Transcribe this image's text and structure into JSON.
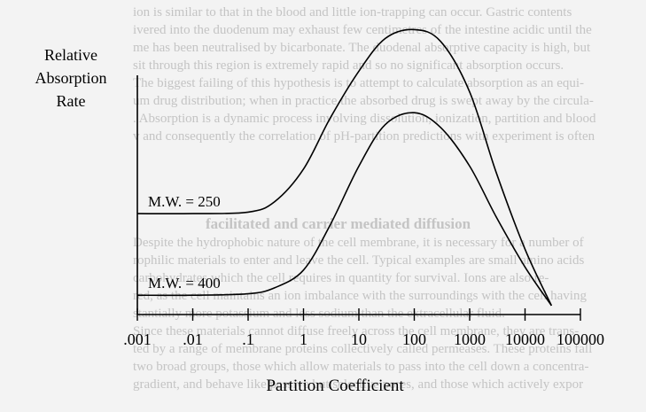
{
  "chart_data": {
    "type": "line",
    "ylabel": [
      "Relative",
      "Absorption",
      "Rate"
    ],
    "xlabel": "Partition Coefficient",
    "x_scale": "log",
    "x_ticks": [
      {
        "value": 0.001,
        "label": ".001"
      },
      {
        "value": 0.01,
        "label": ".01"
      },
      {
        "value": 0.1,
        "label": ".1"
      },
      {
        "value": 1,
        "label": "1"
      },
      {
        "value": 10,
        "label": "10"
      },
      {
        "value": 100,
        "label": "100"
      },
      {
        "value": 1000,
        "label": "1000"
      },
      {
        "value": 10000,
        "label": "10000"
      },
      {
        "value": 100000,
        "label": "100000"
      }
    ],
    "xlim": [
      0.001,
      100000
    ],
    "ylim": [
      0,
      10
    ],
    "series": [
      {
        "name": "M.W. = 250",
        "color": "#000000",
        "points": [
          [
            0.001,
            3.4
          ],
          [
            0.01,
            3.4
          ],
          [
            0.1,
            3.45
          ],
          [
            0.3,
            3.8
          ],
          [
            1,
            4.9
          ],
          [
            3,
            6.6
          ],
          [
            10,
            8.2
          ],
          [
            30,
            9.3
          ],
          [
            100,
            9.6
          ],
          [
            300,
            9.2
          ],
          [
            1000,
            7.5
          ],
          [
            3000,
            4.8
          ],
          [
            10000,
            2.2
          ],
          [
            30000,
            0.3
          ]
        ]
      },
      {
        "name": "M.W. = 400",
        "color": "#000000",
        "points": [
          [
            0.001,
            0.65
          ],
          [
            0.01,
            0.65
          ],
          [
            0.1,
            0.7
          ],
          [
            0.3,
            0.9
          ],
          [
            1,
            1.5
          ],
          [
            3,
            3.0
          ],
          [
            10,
            5.0
          ],
          [
            30,
            6.4
          ],
          [
            100,
            6.8
          ],
          [
            300,
            6.3
          ],
          [
            1000,
            5.0
          ],
          [
            3000,
            3.3
          ],
          [
            10000,
            1.6
          ],
          [
            30000,
            0.3
          ]
        ]
      }
    ]
  },
  "background_text": {
    "lines": [
      "ion is similar to that in the blood and little ion-trapping can occur.  Gastric contents",
      "ivered into the duodenum may exhaust few centimetres of the intestine acidic until the",
      "me has been neutralised by bicarbonate.  The duodenal absorptive capacity is high, but",
      "sit through this region is extremely rapid and so no significant absorption occurs.",
      "The biggest failing of this hypothesis is to attempt to calculate absorption as an equi-",
      "um drug distribution; when in practice the absorbed drug is swept away by the circula-",
      ". Absorption is a dynamic process involving dissolution, ionization, partition and blood",
      "v and consequently the correlation of pH-partition predictions with experiment is often",
      "",
      "",
      "",
      "",
      "facilitated and carrier mediated diffusion",
      "Despite the hydrophobic nature of the cell membrane, it is necessary for a number of",
      "rophilic materials to enter and leave the cell.  Typical examples are small amino acids",
      "carbohydrates which the cell requires in quantity for survival.  Ions are also re-",
      "red, as the cell maintains an ion imbalance with the surroundings with the cell having",
      "stantially more potassium and less sodium than the extracellular fluid.",
      "Since these materials cannot diffuse freely across the cell membrane, they are trans-",
      "ted by a range of membrane proteins collectively called permeases.  These proteins fall",
      "two broad groups, those which allow materials to pass into the cell down a concentra-",
      "gradient, and behave like passive but selective pores, and those which actively expor"
    ]
  }
}
